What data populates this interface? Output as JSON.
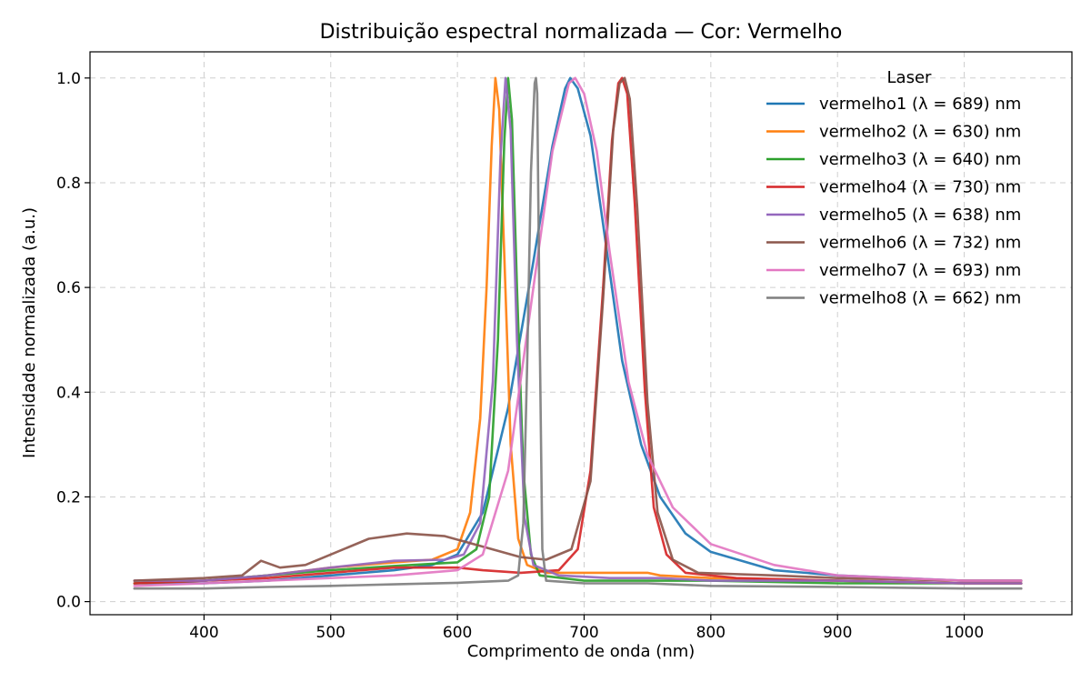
{
  "chart_data": {
    "type": "line",
    "title": "Distribuição espectral normalizada — Cor: Vermelho",
    "xlabel": "Comprimento de onda (nm)",
    "ylabel": "Intensidade normalizada (a.u.)",
    "xlim": [
      310,
      1085
    ],
    "ylim": [
      -0.025,
      1.05
    ],
    "xticks": [
      400,
      500,
      600,
      700,
      800,
      900,
      1000
    ],
    "yticks": [
      0.0,
      0.2,
      0.4,
      0.6,
      0.8,
      1.0
    ],
    "xtick_labels": [
      "400",
      "500",
      "600",
      "700",
      "800",
      "900",
      "1000"
    ],
    "ytick_labels": [
      "0.0",
      "0.2",
      "0.4",
      "0.6",
      "0.8",
      "1.0"
    ],
    "grid": true,
    "legend": {
      "title": "Laser",
      "position": "top-right"
    },
    "series": [
      {
        "name": "vermelho1 (λ = 689) nm",
        "color": "#1f77b4",
        "points": [
          [
            345,
            0.035
          ],
          [
            400,
            0.035
          ],
          [
            450,
            0.04
          ],
          [
            500,
            0.05
          ],
          [
            550,
            0.06
          ],
          [
            580,
            0.07
          ],
          [
            600,
            0.09
          ],
          [
            620,
            0.17
          ],
          [
            640,
            0.37
          ],
          [
            660,
            0.65
          ],
          [
            675,
            0.87
          ],
          [
            685,
            0.98
          ],
          [
            689,
            1.0
          ],
          [
            695,
            0.98
          ],
          [
            705,
            0.89
          ],
          [
            715,
            0.72
          ],
          [
            730,
            0.46
          ],
          [
            745,
            0.3
          ],
          [
            760,
            0.2
          ],
          [
            780,
            0.13
          ],
          [
            800,
            0.095
          ],
          [
            850,
            0.06
          ],
          [
            900,
            0.05
          ],
          [
            950,
            0.045
          ],
          [
            1000,
            0.04
          ],
          [
            1045,
            0.04
          ]
        ]
      },
      {
        "name": "vermelho2 (λ = 630) nm",
        "color": "#ff7f0e",
        "points": [
          [
            345,
            0.035
          ],
          [
            400,
            0.04
          ],
          [
            450,
            0.05
          ],
          [
            500,
            0.065
          ],
          [
            550,
            0.075
          ],
          [
            580,
            0.08
          ],
          [
            600,
            0.1
          ],
          [
            610,
            0.17
          ],
          [
            618,
            0.35
          ],
          [
            623,
            0.6
          ],
          [
            627,
            0.87
          ],
          [
            630,
            1.0
          ],
          [
            633,
            0.94
          ],
          [
            637,
            0.66
          ],
          [
            642,
            0.3
          ],
          [
            648,
            0.12
          ],
          [
            655,
            0.07
          ],
          [
            670,
            0.055
          ],
          [
            700,
            0.055
          ],
          [
            750,
            0.055
          ],
          [
            760,
            0.05
          ],
          [
            800,
            0.045
          ],
          [
            900,
            0.04
          ],
          [
            1000,
            0.035
          ],
          [
            1045,
            0.035
          ]
        ]
      },
      {
        "name": "vermelho3 (λ = 640) nm",
        "color": "#2ca02c",
        "points": [
          [
            345,
            0.035
          ],
          [
            400,
            0.04
          ],
          [
            450,
            0.05
          ],
          [
            500,
            0.06
          ],
          [
            550,
            0.068
          ],
          [
            600,
            0.075
          ],
          [
            615,
            0.1
          ],
          [
            625,
            0.2
          ],
          [
            632,
            0.5
          ],
          [
            637,
            0.88
          ],
          [
            640,
            1.0
          ],
          [
            643,
            0.92
          ],
          [
            647,
            0.6
          ],
          [
            652,
            0.25
          ],
          [
            658,
            0.09
          ],
          [
            665,
            0.05
          ],
          [
            700,
            0.04
          ],
          [
            750,
            0.04
          ],
          [
            800,
            0.04
          ],
          [
            900,
            0.035
          ],
          [
            1000,
            0.035
          ],
          [
            1045,
            0.035
          ]
        ]
      },
      {
        "name": "vermelho4 (λ = 730) nm",
        "color": "#d62728",
        "points": [
          [
            345,
            0.035
          ],
          [
            400,
            0.04
          ],
          [
            450,
            0.045
          ],
          [
            500,
            0.055
          ],
          [
            550,
            0.065
          ],
          [
            600,
            0.065
          ],
          [
            620,
            0.06
          ],
          [
            650,
            0.055
          ],
          [
            680,
            0.06
          ],
          [
            695,
            0.1
          ],
          [
            705,
            0.25
          ],
          [
            715,
            0.6
          ],
          [
            722,
            0.88
          ],
          [
            727,
            0.99
          ],
          [
            730,
            1.0
          ],
          [
            734,
            0.97
          ],
          [
            740,
            0.76
          ],
          [
            748,
            0.4
          ],
          [
            755,
            0.18
          ],
          [
            765,
            0.09
          ],
          [
            780,
            0.055
          ],
          [
            820,
            0.045
          ],
          [
            900,
            0.04
          ],
          [
            1000,
            0.035
          ],
          [
            1045,
            0.035
          ]
        ]
      },
      {
        "name": "vermelho5 (λ = 638) nm",
        "color": "#9467bd",
        "points": [
          [
            345,
            0.04
          ],
          [
            400,
            0.04
          ],
          [
            450,
            0.05
          ],
          [
            500,
            0.065
          ],
          [
            550,
            0.078
          ],
          [
            590,
            0.08
          ],
          [
            605,
            0.09
          ],
          [
            618,
            0.15
          ],
          [
            628,
            0.42
          ],
          [
            634,
            0.85
          ],
          [
            638,
            1.0
          ],
          [
            642,
            0.9
          ],
          [
            647,
            0.5
          ],
          [
            653,
            0.16
          ],
          [
            660,
            0.07
          ],
          [
            680,
            0.05
          ],
          [
            720,
            0.045
          ],
          [
            760,
            0.045
          ],
          [
            800,
            0.04
          ],
          [
            900,
            0.04
          ],
          [
            1000,
            0.035
          ],
          [
            1045,
            0.035
          ]
        ]
      },
      {
        "name": "vermelho6 (λ = 732) nm",
        "color": "#8c564b",
        "points": [
          [
            345,
            0.04
          ],
          [
            400,
            0.045
          ],
          [
            430,
            0.05
          ],
          [
            445,
            0.078
          ],
          [
            460,
            0.065
          ],
          [
            480,
            0.07
          ],
          [
            500,
            0.09
          ],
          [
            530,
            0.12
          ],
          [
            560,
            0.13
          ],
          [
            590,
            0.125
          ],
          [
            620,
            0.105
          ],
          [
            650,
            0.085
          ],
          [
            670,
            0.08
          ],
          [
            690,
            0.1
          ],
          [
            705,
            0.23
          ],
          [
            715,
            0.58
          ],
          [
            723,
            0.9
          ],
          [
            728,
            0.99
          ],
          [
            732,
            1.0
          ],
          [
            736,
            0.96
          ],
          [
            742,
            0.75
          ],
          [
            750,
            0.38
          ],
          [
            758,
            0.17
          ],
          [
            770,
            0.08
          ],
          [
            790,
            0.055
          ],
          [
            850,
            0.05
          ],
          [
            900,
            0.045
          ],
          [
            1000,
            0.04
          ],
          [
            1045,
            0.04
          ]
        ]
      },
      {
        "name": "vermelho7 (λ = 693) nm",
        "color": "#e377c2",
        "points": [
          [
            345,
            0.03
          ],
          [
            400,
            0.035
          ],
          [
            450,
            0.04
          ],
          [
            500,
            0.045
          ],
          [
            550,
            0.05
          ],
          [
            600,
            0.06
          ],
          [
            620,
            0.09
          ],
          [
            640,
            0.25
          ],
          [
            660,
            0.6
          ],
          [
            675,
            0.86
          ],
          [
            688,
            0.99
          ],
          [
            693,
            1.0
          ],
          [
            700,
            0.97
          ],
          [
            710,
            0.86
          ],
          [
            720,
            0.67
          ],
          [
            735,
            0.42
          ],
          [
            750,
            0.28
          ],
          [
            770,
            0.18
          ],
          [
            800,
            0.11
          ],
          [
            850,
            0.07
          ],
          [
            900,
            0.05
          ],
          [
            950,
            0.045
          ],
          [
            1000,
            0.04
          ],
          [
            1045,
            0.04
          ]
        ]
      },
      {
        "name": "vermelho8 (λ = 662) nm",
        "color": "#7f7f7f",
        "points": [
          [
            345,
            0.025
          ],
          [
            400,
            0.025
          ],
          [
            450,
            0.028
          ],
          [
            500,
            0.03
          ],
          [
            550,
            0.033
          ],
          [
            600,
            0.036
          ],
          [
            640,
            0.04
          ],
          [
            648,
            0.05
          ],
          [
            652,
            0.15
          ],
          [
            655,
            0.45
          ],
          [
            658,
            0.82
          ],
          [
            661,
            0.99
          ],
          [
            662,
            1.0
          ],
          [
            663,
            0.97
          ],
          [
            665,
            0.5
          ],
          [
            667,
            0.1
          ],
          [
            670,
            0.04
          ],
          [
            700,
            0.035
          ],
          [
            750,
            0.035
          ],
          [
            800,
            0.03
          ],
          [
            900,
            0.028
          ],
          [
            1000,
            0.025
          ],
          [
            1045,
            0.025
          ]
        ]
      }
    ]
  }
}
